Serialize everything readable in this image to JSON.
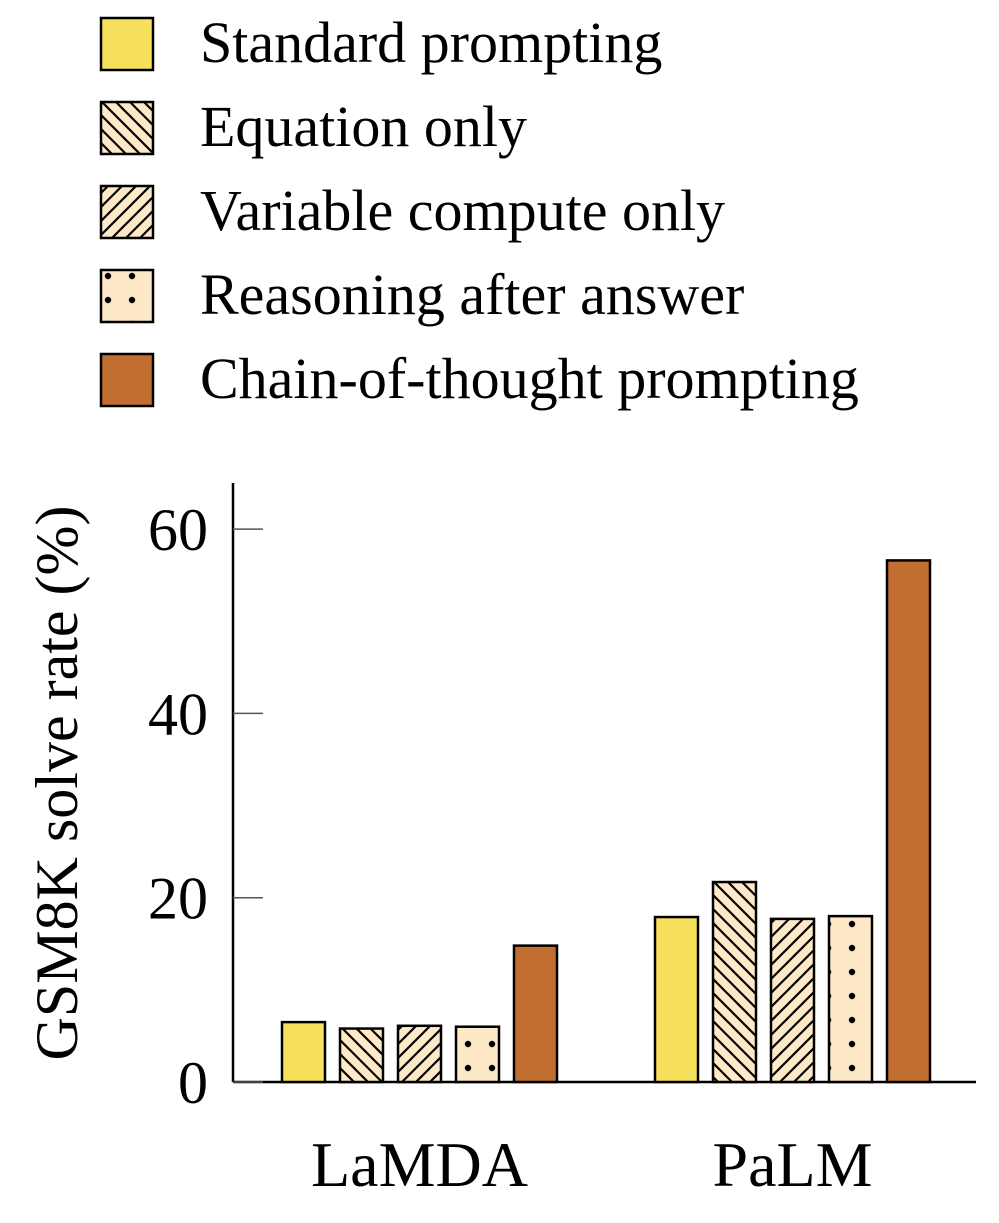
{
  "chart_data": {
    "type": "bar",
    "categories": [
      "LaMDA",
      "PaLM"
    ],
    "series": [
      {
        "name": "Standard prompting",
        "values": [
          6.5,
          17.9
        ],
        "color": "#f7e15c",
        "pattern": "solid"
      },
      {
        "name": "Equation only",
        "values": [
          5.8,
          21.7
        ],
        "color": "#fde8c8",
        "pattern": "backslash-hatch"
      },
      {
        "name": "Variable compute only",
        "values": [
          6.1,
          17.7
        ],
        "color": "#fde8c8",
        "pattern": "slash-hatch"
      },
      {
        "name": "Reasoning after answer",
        "values": [
          6.0,
          18.0
        ],
        "color": "#fde8c8",
        "pattern": "dots"
      },
      {
        "name": "Chain-of-thought prompting",
        "values": [
          14.8,
          56.6
        ],
        "color": "#c36e31",
        "pattern": "solid"
      }
    ],
    "ylabel": "GSM8K solve rate (%)",
    "xlabel": "",
    "ylim": [
      0,
      65
    ],
    "yticks": [
      0,
      20,
      40,
      60
    ],
    "legend_position": "top",
    "grid": false
  }
}
